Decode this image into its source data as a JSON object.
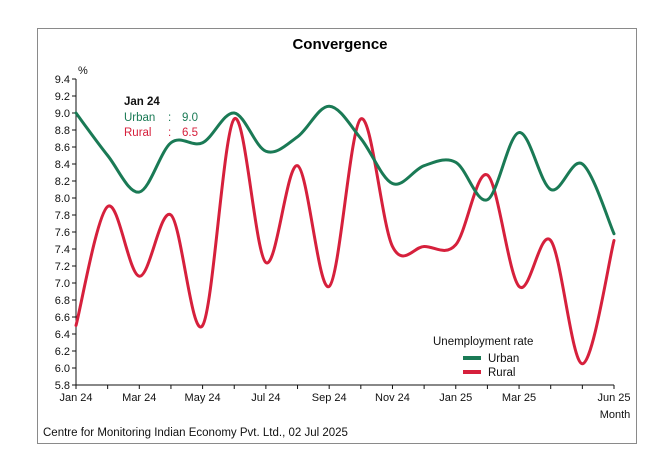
{
  "chart_data": {
    "type": "line",
    "title": "Convergence",
    "y_unit": "%",
    "xlabel": "Month",
    "ylim": [
      5.8,
      9.4
    ],
    "y_ticks": [
      "9.4",
      "9.2",
      "9.0",
      "8.8",
      "8.6",
      "8.4",
      "8.2",
      "8.0",
      "7.8",
      "7.6",
      "7.4",
      "7.2",
      "7.0",
      "6.8",
      "6.6",
      "6.4",
      "6.2",
      "6.0",
      "5.8"
    ],
    "x": [
      "Jan 24",
      "Feb 24",
      "Mar 24",
      "Apr 24",
      "May 24",
      "Jun 24",
      "Jul 24",
      "Aug 24",
      "Sep 24",
      "Oct 24",
      "Nov 24",
      "Dec 24",
      "Jan 25",
      "Feb 25",
      "Mar 25",
      "Apr 25",
      "May 25",
      "Jun 25"
    ],
    "x_tick_labels": [
      "Jan 24",
      "Mar 24",
      "May 24",
      "Jul 24",
      "Sep 24",
      "Nov 24",
      "Jan 25",
      "Mar 25",
      "Jun 25"
    ],
    "series": [
      {
        "name": "Urban",
        "color": "#1a7a55",
        "values": [
          9.0,
          8.5,
          8.07,
          8.65,
          8.65,
          9.0,
          8.55,
          8.72,
          9.08,
          8.7,
          8.17,
          8.38,
          8.42,
          7.98,
          8.77,
          8.1,
          8.4,
          7.58
        ]
      },
      {
        "name": "Rural",
        "color": "#d6203c",
        "values": [
          6.5,
          7.9,
          7.08,
          7.8,
          6.5,
          8.93,
          7.24,
          8.38,
          6.96,
          8.93,
          7.43,
          7.43,
          7.45,
          8.27,
          6.96,
          7.5,
          6.05,
          7.5
        ]
      }
    ],
    "legend": {
      "title": "Unemployment rate",
      "position": "bottom-right"
    },
    "grid": false,
    "tooltip": {
      "date": "Jan 24",
      "rows": [
        {
          "label": "Urban",
          "sep": ":",
          "value": "9.0",
          "color": "#1a7a55"
        },
        {
          "label": "Rural",
          "sep": ":",
          "value": "6.5",
          "color": "#d6203c"
        }
      ]
    },
    "source": "Centre for Monitoring Indian Economy Pvt. Ltd., 02 Jul 2025"
  }
}
